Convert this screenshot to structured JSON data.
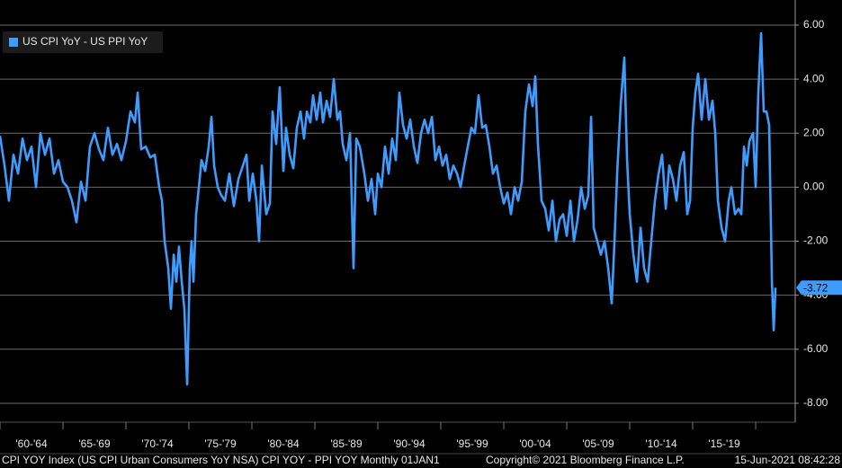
{
  "chart_data": {
    "type": "line",
    "legend_position": "upper left",
    "grid": true,
    "footer": {
      "description": "CPI YOY Index (US CPI Urban Consumers YoY NSA) CPI YOY - PPI YOY  Monthly 01JAN1",
      "copyright": "Copyright© 2021 Bloomberg Finance L.P.",
      "timestamp": "15-Jun-2021 08:42:28"
    },
    "xlim": [
      1960,
      2023.14
    ],
    "xticks": [
      1960,
      1965,
      1970,
      1975,
      1980,
      1985,
      1990,
      1995,
      2000,
      2005,
      2010,
      2015,
      2020
    ],
    "categories": [
      "'60-'64",
      "'65-'69",
      "'70-'74",
      "'75-'79",
      "'80-'84",
      "'85-'89",
      "'90-'94",
      "'95-'99",
      "'00-'04",
      "'05-'09",
      "'10-'14",
      "'15-'19"
    ],
    "ylim": [
      -8.7,
      6.93
    ],
    "yticks": [
      {
        "value": 6,
        "label": "6.00"
      },
      {
        "value": 4,
        "label": "4.00"
      },
      {
        "value": 2,
        "label": "2.00"
      },
      {
        "value": 0,
        "label": "0.00"
      },
      {
        "value": -2,
        "label": "-2.00"
      },
      {
        "value": -4,
        "label": "-4.00"
      },
      {
        "value": -6,
        "label": "-6.00"
      },
      {
        "value": -8,
        "label": "-8.00"
      }
    ],
    "x": [
      1960,
      1960.36,
      1960.71,
      1961.07,
      1961.43,
      1961.79,
      1962.14,
      1962.5,
      1962.86,
      1963.21,
      1963.57,
      1963.93,
      1964.29,
      1964.64,
      1965,
      1965.36,
      1965.71,
      1966.07,
      1966.43,
      1966.79,
      1967.14,
      1967.5,
      1967.86,
      1968.21,
      1968.57,
      1968.93,
      1969.29,
      1969.64,
      1970,
      1970.36,
      1970.71,
      1970.93,
      1971.21,
      1971.57,
      1971.93,
      1972.29,
      1972.64,
      1972.86,
      1973.07,
      1973.36,
      1973.57,
      1973.79,
      1974,
      1974.21,
      1974.43,
      1974.64,
      1974.86,
      1975.07,
      1975.21,
      1975.36,
      1975.57,
      1975.79,
      1976,
      1976.29,
      1976.57,
      1976.79,
      1977,
      1977.29,
      1977.57,
      1977.86,
      1978.21,
      1978.57,
      1978.93,
      1979.29,
      1979.57,
      1979.79,
      1980.07,
      1980.36,
      1980.57,
      1980.79,
      1981.14,
      1981.43,
      1981.64,
      1981.93,
      1982.21,
      1982.5,
      1982.71,
      1983,
      1983.29,
      1983.57,
      1983.86,
      1984.14,
      1984.36,
      1984.64,
      1984.86,
      1985.14,
      1985.43,
      1985.64,
      1985.93,
      1986.21,
      1986.5,
      1986.79,
      1987,
      1987.21,
      1987.5,
      1987.79,
      1988.07,
      1988.29,
      1988.57,
      1988.93,
      1989.21,
      1989.5,
      1989.79,
      1990,
      1990.29,
      1990.57,
      1990.86,
      1991.14,
      1991.43,
      1991.71,
      1992,
      1992.29,
      1992.57,
      1992.86,
      1993.14,
      1993.43,
      1993.71,
      1994,
      1994.29,
      1994.57,
      1994.86,
      1995.14,
      1995.43,
      1995.71,
      1996,
      1996.29,
      1996.57,
      1996.86,
      1997.14,
      1997.43,
      1997.71,
      1998,
      1998.29,
      1998.57,
      1998.86,
      1999.14,
      1999.43,
      1999.71,
      2000,
      2000.29,
      2000.57,
      2000.86,
      2001.14,
      2001.43,
      2001.71,
      2002,
      2002.29,
      2002.5,
      2002.71,
      2003,
      2003.29,
      2003.57,
      2003.86,
      2004.14,
      2004.43,
      2004.71,
      2005,
      2005.29,
      2005.57,
      2005.86,
      2006.14,
      2006.43,
      2006.71,
      2006.93,
      2007.14,
      2007.43,
      2007.71,
      2008,
      2008.29,
      2008.57,
      2008.79,
      2009,
      2009.29,
      2009.57,
      2009.79,
      2010,
      2010.29,
      2010.57,
      2010.86,
      2011.14,
      2011.43,
      2011.71,
      2012,
      2012.29,
      2012.57,
      2012.86,
      2013.14,
      2013.43,
      2013.71,
      2014,
      2014.29,
      2014.57,
      2014.79,
      2015,
      2015.21,
      2015.43,
      2015.71,
      2016,
      2016.29,
      2016.57,
      2016.79,
      2017,
      2017.29,
      2017.57,
      2017.86,
      2018.07,
      2018.36,
      2018.64,
      2018.86,
      2019.07,
      2019.29,
      2019.5,
      2019.79,
      2020,
      2020.21,
      2020.43,
      2020.64,
      2020.86,
      2021.07,
      2021.29,
      2021.43,
      2021.57
    ],
    "series": [
      {
        "name": "US CPI YoY - US PPI YoY",
        "color": "#3f9cff",
        "values": [
          1.9,
          0.8,
          -0.5,
          1.2,
          0.5,
          1.8,
          1.0,
          1.5,
          0.0,
          2.0,
          1.2,
          1.8,
          0.5,
          1.0,
          0.2,
          0.0,
          -0.5,
          -1.3,
          0.2,
          -0.5,
          1.5,
          2.0,
          1.4,
          1.0,
          2.2,
          1.2,
          1.6,
          1.0,
          1.7,
          2.8,
          2.4,
          3.5,
          1.4,
          1.5,
          1.1,
          1.2,
          0.0,
          -0.5,
          -2.0,
          -3.0,
          -4.5,
          -2.5,
          -3.5,
          -2.2,
          -3.5,
          -4.5,
          -7.3,
          -3.0,
          -2.0,
          -3.5,
          -1.0,
          0.0,
          1.0,
          0.6,
          1.5,
          2.6,
          0.8,
          0.0,
          -0.3,
          -0.5,
          0.5,
          -0.7,
          0.3,
          0.8,
          1.2,
          -0.5,
          0.5,
          -0.5,
          -2.0,
          0.8,
          -1.0,
          -0.6,
          2.8,
          1.6,
          3.7,
          0.6,
          2.2,
          1.2,
          0.7,
          2.2,
          2.8,
          1.8,
          2.8,
          2.4,
          3.4,
          2.5,
          3.5,
          2.4,
          3.2,
          2.6,
          4.0,
          2.5,
          2.8,
          1.6,
          1.0,
          2.0,
          -3.0,
          1.8,
          1.5,
          0.5,
          -0.5,
          0.3,
          -1.0,
          0.5,
          0.0,
          1.5,
          0.5,
          1.8,
          1.0,
          3.5,
          2.3,
          1.8,
          2.5,
          1.5,
          0.9,
          2.0,
          2.5,
          2.0,
          2.6,
          1.0,
          1.5,
          0.8,
          1.2,
          0.3,
          0.8,
          0.5,
          0.0,
          0.8,
          1.5,
          2.2,
          2.0,
          3.4,
          2.2,
          2.3,
          1.5,
          0.5,
          0.8,
          0.0,
          -0.6,
          -0.2,
          -1.0,
          0.0,
          -0.5,
          0.2,
          2.8,
          3.8,
          3.0,
          4.1,
          1.6,
          -0.5,
          -0.8,
          -1.6,
          -0.5,
          -2.0,
          -1.2,
          -1.0,
          -1.8,
          -0.5,
          -2.0,
          -1.2,
          0.0,
          -0.8,
          -0.3,
          2.6,
          -1.5,
          -2.0,
          -2.5,
          -2.0,
          -3.0,
          -4.3,
          -2.0,
          0.5,
          3.1,
          4.8,
          1.0,
          -1.0,
          -2.5,
          -3.5,
          -1.5,
          -3.0,
          -3.5,
          -2.0,
          -0.5,
          0.5,
          1.2,
          -0.8,
          0.8,
          0.3,
          -0.5,
          0.8,
          1.3,
          -1.0,
          -0.5,
          2.2,
          3.5,
          4.2,
          2.5,
          4.0,
          2.5,
          3.2,
          2.0,
          -0.5,
          -1.5,
          -2.0,
          -0.5,
          0.0,
          -1.0,
          -0.8,
          -1.0,
          1.5,
          0.8,
          1.7,
          2.0,
          0.0,
          3.5,
          5.7,
          2.8,
          2.8,
          2.3,
          -3.5,
          -5.3,
          -3.72
        ]
      }
    ]
  }
}
